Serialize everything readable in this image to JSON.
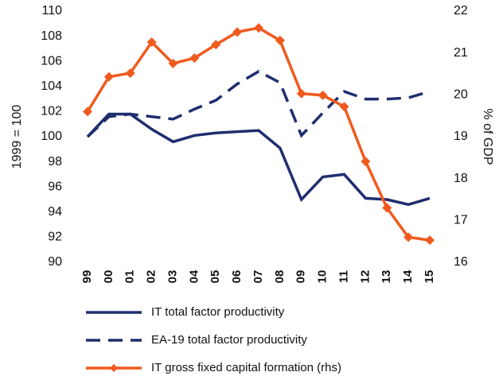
{
  "chart_data": {
    "type": "line",
    "categories": [
      "99",
      "00",
      "01",
      "02",
      "03",
      "04",
      "05",
      "06",
      "07",
      "08",
      "09",
      "10",
      "11",
      "12",
      "13",
      "14",
      "15"
    ],
    "y_label": "1999 = 100",
    "y2_label": "% of GDP",
    "ylim": [
      90,
      110
    ],
    "yticks": [
      90,
      92,
      94,
      96,
      98,
      100,
      102,
      104,
      106,
      108,
      110
    ],
    "y2lim": [
      16,
      22
    ],
    "y2ticks": [
      16,
      17,
      18,
      19,
      20,
      21,
      22
    ],
    "series": [
      {
        "name": "IT total factor productivity",
        "color": "#1f2e6e",
        "style": "solid",
        "values": [
          100.0,
          101.8,
          101.8,
          100.6,
          99.6,
          100.1,
          100.3,
          100.4,
          100.5,
          99.1,
          95.0,
          96.8,
          97.0,
          95.1,
          95.0,
          94.6,
          95.1
        ]
      },
      {
        "name": "EA-19 total factor productivity",
        "color": "#1f2e6e",
        "style": "dashed",
        "values": [
          100.0,
          101.6,
          101.8,
          101.6,
          101.4,
          102.2,
          102.9,
          104.2,
          105.2,
          104.3,
          100.1,
          101.9,
          103.6,
          103.0,
          103.0,
          103.1,
          103.6
        ]
      },
      {
        "name": "IT gross fixed capital formation (rhs)",
        "color": "#f05a1e",
        "style": "solid",
        "axis": "y2",
        "marker": "diamond",
        "values": [
          19.6,
          20.43,
          20.52,
          21.26,
          20.75,
          20.88,
          21.2,
          21.5,
          21.6,
          21.3,
          20.03,
          19.99,
          19.72,
          18.41,
          17.3,
          16.6,
          16.53
        ]
      }
    ]
  }
}
